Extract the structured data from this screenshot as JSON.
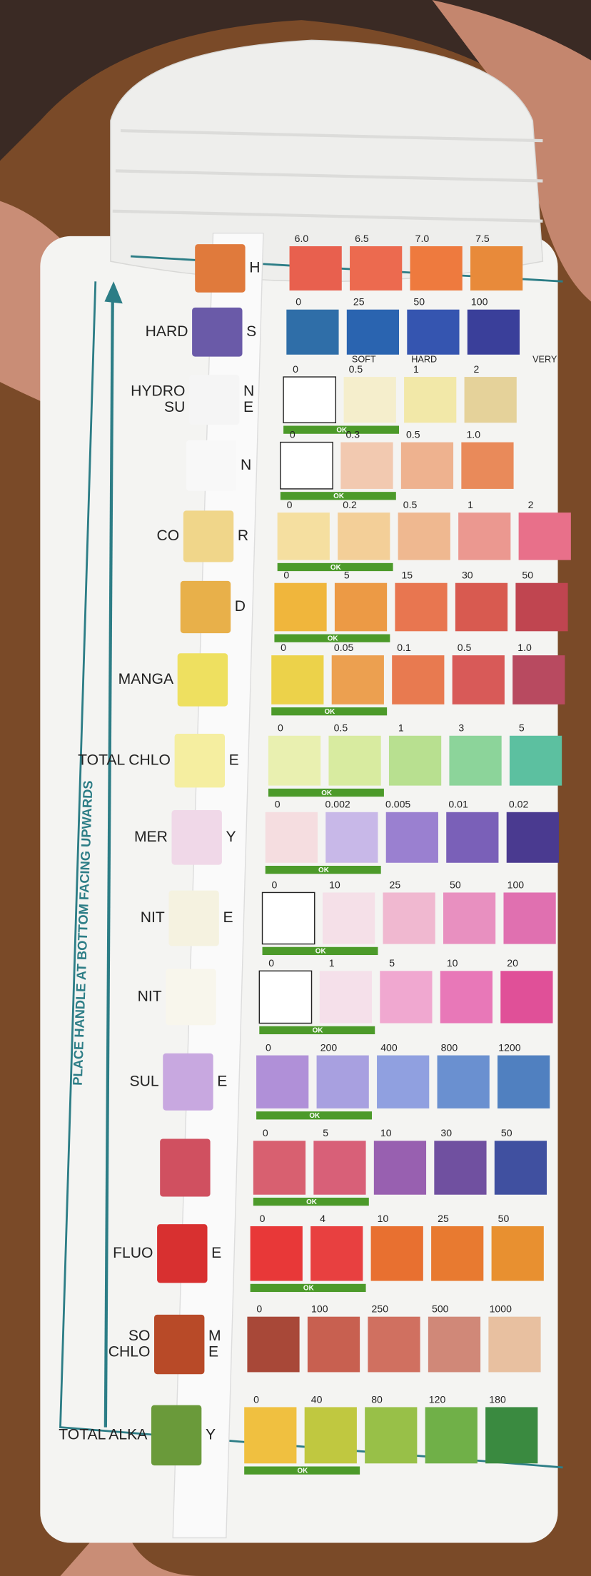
{
  "vertical_note": "PLACE HANDLE AT BOTTOM FACING UPWARDS",
  "rows": [
    {
      "lines": [
        {
          "right": "H"
        }
      ],
      "values": [
        "6.0",
        "6.5",
        "7.0",
        "7.5"
      ],
      "colors": [
        "#e8604e",
        "#ec6a4f",
        "#ee7a3e",
        "#e88a3a"
      ],
      "pad": "#e07a3c"
    },
    {
      "lines": [
        {
          "left": "HARD",
          "right": "S"
        }
      ],
      "values": [
        "0",
        "25",
        "50",
        "100"
      ],
      "colors": [
        "#2f6ea8",
        "#2a64b0",
        "#3555b0",
        "#3a3f9a"
      ],
      "pad": "#6a5aa8"
    },
    {
      "lines": [
        {
          "left": "HYDRO",
          "right": "N"
        },
        {
          "left": "SU",
          "right": "E"
        }
      ],
      "values": [
        "0",
        "0.5",
        "1",
        "2"
      ],
      "colors": [
        "#ffffff",
        "#f5eecc",
        "#f2e8a8",
        "#e5d29a"
      ],
      "pad": "#f5f5f5",
      "ok": "OK",
      "notes": [
        "SOFT",
        "HARD",
        "VERY"
      ]
    },
    {
      "lines": [
        {
          "right": "N"
        }
      ],
      "values": [
        "0",
        "0.3",
        "0.5",
        "1.0"
      ],
      "colors": [
        "#ffffff",
        "#f2c9b0",
        "#eeb28f",
        "#e98a5a"
      ],
      "pad": "#f8f8f8",
      "ok": "OK"
    },
    {
      "lines": [
        {
          "left": "CO",
          "right": "R"
        }
      ],
      "values": [
        "0",
        "0.2",
        "0.5",
        "1",
        "2"
      ],
      "colors": [
        "#f5dfa0",
        "#f3cf98",
        "#efb890",
        "#eb9890",
        "#e8708a"
      ],
      "pad": "#f0d68a",
      "ok": "OK"
    },
    {
      "lines": [
        {
          "right": "D"
        }
      ],
      "values": [
        "0",
        "5",
        "15",
        "30",
        "50"
      ],
      "colors": [
        "#f0b63c",
        "#ec9a45",
        "#e87650",
        "#d85a50",
        "#c04550"
      ],
      "pad": "#e8b04a",
      "ok": "OK"
    },
    {
      "lines": [
        {
          "left": "MANGA"
        }
      ],
      "values": [
        "0",
        "0.05",
        "0.1",
        "0.5",
        "1.0"
      ],
      "colors": [
        "#ecd24a",
        "#eca050",
        "#e87a50",
        "#d85a58",
        "#b84a60"
      ],
      "pad": "#eee060",
      "ok": "OK"
    },
    {
      "lines": [
        {
          "left": "TOTAL CHLO",
          "right": "E"
        }
      ],
      "values": [
        "0",
        "0.5",
        "1",
        "3",
        "5"
      ],
      "colors": [
        "#e9f0b0",
        "#d8eba0",
        "#b8e090",
        "#8cd49a",
        "#5cc0a0"
      ],
      "pad": "#f5eea0",
      "ok": "OK"
    },
    {
      "lines": [
        {
          "left": "MER",
          "right": "Y"
        }
      ],
      "values": [
        "0",
        "0.002",
        "0.005",
        "0.01",
        "0.02"
      ],
      "colors": [
        "#f5dde0",
        "#c8b8e8",
        "#9a80d0",
        "#7a60b8",
        "#4a3a90"
      ],
      "pad": "#f0d8e8",
      "ok": "OK"
    },
    {
      "lines": [
        {
          "left": "NIT",
          "right": "E"
        }
      ],
      "values": [
        "0",
        "10",
        "25",
        "50",
        "100"
      ],
      "colors": [
        "#ffffff",
        "#f5e0e8",
        "#f0b8d0",
        "#e890c0",
        "#e070b0"
      ],
      "pad": "#f5f2e0",
      "ok": "OK"
    },
    {
      "lines": [
        {
          "left": "NIT"
        }
      ],
      "values": [
        "0",
        "1",
        "5",
        "10",
        "20"
      ],
      "colors": [
        "#ffffff",
        "#f5e0ea",
        "#f0a8d0",
        "#e878b8",
        "#e05098"
      ],
      "pad": "#f8f6ec",
      "ok": "OK"
    },
    {
      "lines": [
        {
          "left": "SUL",
          "right": "E"
        }
      ],
      "values": [
        "0",
        "200",
        "400",
        "800",
        "1200"
      ],
      "colors": [
        "#b090d8",
        "#a8a0e0",
        "#90a0e0",
        "#6a90d0",
        "#5080c0"
      ],
      "pad": "#c8a8e0",
      "ok": "OK"
    },
    {
      "lines": [],
      "values": [
        "0",
        "5",
        "10",
        "30",
        "50"
      ],
      "colors": [
        "#d86070",
        "#d86078",
        "#9860b0",
        "#7050a0",
        "#4050a0"
      ],
      "pad": "#d05060",
      "ok": "OK"
    },
    {
      "lines": [
        {
          "left": "FLUO",
          "right": "E"
        }
      ],
      "values": [
        "0",
        "4",
        "10",
        "25",
        "50"
      ],
      "colors": [
        "#e83838",
        "#e84040",
        "#e87030",
        "#e87a30",
        "#e89030"
      ],
      "pad": "#d83030",
      "ok": "OK"
    },
    {
      "lines": [
        {
          "left": "SO",
          "right": "M"
        },
        {
          "left": "CHLO",
          "right": "E"
        }
      ],
      "values": [
        "0",
        "100",
        "250",
        "500",
        "1000"
      ],
      "colors": [
        "#a84838",
        "#c86050",
        "#d07060",
        "#d08878",
        "#e8c0a0"
      ],
      "pad": "#b84a28"
    },
    {
      "lines": [
        {
          "left": "TOTAL ALKA",
          "right": "Y"
        }
      ],
      "values": [
        "0",
        "40",
        "80",
        "120",
        "180"
      ],
      "colors": [
        "#f0c040",
        "#c0c840",
        "#98c048",
        "#70b048",
        "#3a8a40"
      ],
      "pad": "#6a9a3a",
      "ok": "OK"
    }
  ]
}
